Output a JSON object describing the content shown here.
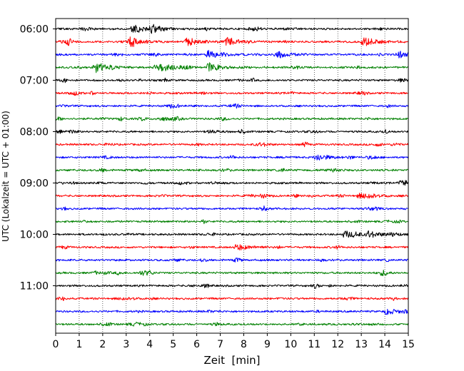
{
  "chart_data": {
    "type": "line",
    "xlabel": "Zeit  [min]",
    "ylabel": "UTC (Lokalzeit = UTC + 01:00)",
    "xlim": [
      0,
      15
    ],
    "x_ticks": [
      0,
      1,
      2,
      3,
      4,
      5,
      6,
      7,
      8,
      9,
      10,
      11,
      12,
      13,
      14,
      15
    ],
    "x_tick_labels": [
      "0",
      "1",
      "2",
      "3",
      "4",
      "5",
      "6",
      "7",
      "8",
      "9",
      "10",
      "11",
      "12",
      "13",
      "14",
      "15"
    ],
    "y_tick_labels": [
      "06:00",
      "07:00",
      "08:00",
      "09:00",
      "10:00",
      "11:00"
    ],
    "rows_per_tick": 4,
    "row_count": 24,
    "trace_colors": [
      "#000000",
      "#ff0000",
      "#0000ff",
      "#008000"
    ],
    "vertical_grid": "dotted",
    "events": [
      {
        "row": 0,
        "minute": 3.3,
        "amplitude": 1.0
      },
      {
        "row": 0,
        "minute": 4.1,
        "amplitude": 0.8
      },
      {
        "row": 1,
        "minute": 3.2,
        "amplitude": 1.0
      },
      {
        "row": 1,
        "minute": 5.6,
        "amplitude": 0.9
      },
      {
        "row": 1,
        "minute": 7.3,
        "amplitude": 0.9
      },
      {
        "row": 1,
        "minute": 13.1,
        "amplitude": 1.1
      },
      {
        "row": 2,
        "minute": 6.5,
        "amplitude": 0.9
      },
      {
        "row": 2,
        "minute": 9.4,
        "amplitude": 0.8
      },
      {
        "row": 2,
        "minute": 14.6,
        "amplitude": 0.7
      },
      {
        "row": 3,
        "minute": 1.7,
        "amplitude": 1.2
      },
      {
        "row": 3,
        "minute": 4.3,
        "amplitude": 0.9
      },
      {
        "row": 3,
        "minute": 6.5,
        "amplitude": 1.0
      },
      {
        "row": 10,
        "minute": 11.1,
        "amplitude": 0.8
      },
      {
        "row": 12,
        "minute": 14.7,
        "amplitude": 0.7
      },
      {
        "row": 13,
        "minute": 13.2,
        "amplitude": 0.7
      },
      {
        "row": 16,
        "minute": 12.3,
        "amplitude": 0.8
      },
      {
        "row": 16,
        "minute": 13.3,
        "amplitude": 0.7
      },
      {
        "row": 17,
        "minute": 7.7,
        "amplitude": 0.7
      },
      {
        "row": 22,
        "minute": 14.1,
        "amplitude": 0.6
      }
    ]
  }
}
